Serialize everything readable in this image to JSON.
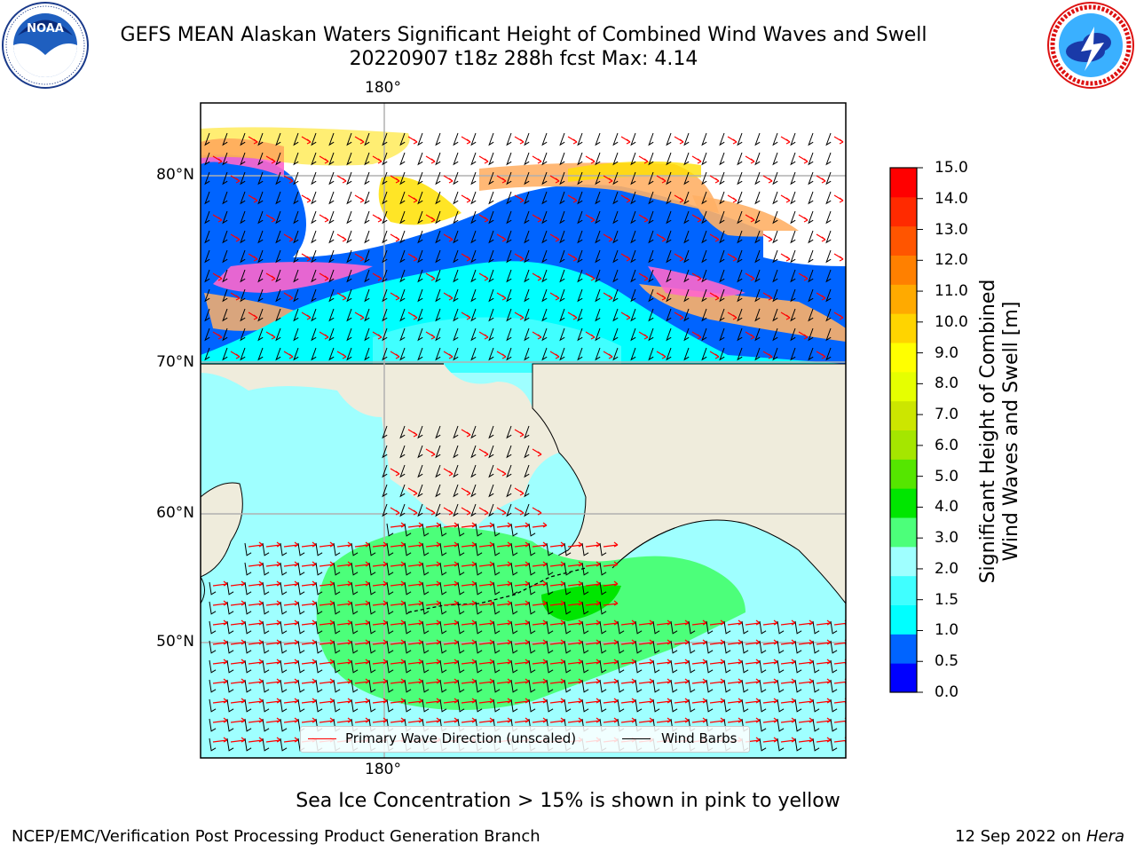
{
  "header": {
    "title_line1": "GEFS MEAN Alaskan Waters Significant Height of Combined Wind Waves and Swell",
    "title_line2": "20220907 t18z 288h fcst   Max: 4.14"
  },
  "logos": {
    "left": {
      "text": "NOAA",
      "ring_text": "NATIONAL OCEANIC AND ATMOSPHERIC ADMINISTRATION · U.S. DEPARTMENT OF COMMERCE"
    },
    "right": {
      "ring_text": "NATIONAL WEATHER SERVICE"
    }
  },
  "map": {
    "lat_labels": [
      "80°N",
      "70°N",
      "60°N",
      "50°N"
    ],
    "lon_label_top": "180°",
    "lon_label_bottom": "180°",
    "colors": {
      "land": "#efecdc",
      "ice_pink": "#ff66cc",
      "ice_orange": "#ffb066",
      "ice_yellow": "#ffe000",
      "grid": "#b0b0b0"
    }
  },
  "legend": {
    "wave_dir_label": "Primary Wave Direction (unscaled)",
    "wind_barbs_label": "Wind Barbs",
    "wave_dir_color": "#ff0000",
    "wind_barbs_color": "#000000"
  },
  "colorbar": {
    "label_line1": "Significant Height of Combined",
    "label_line2": "Wind Waves and Swell [m]",
    "ticks": [
      "15.0",
      "14.0",
      "13.0",
      "12.0",
      "11.0",
      "10.0",
      "9.0",
      "8.0",
      "7.0",
      "6.0",
      "5.0",
      "4.0",
      "3.0",
      "2.0",
      "1.5",
      "1.0",
      "0.5",
      "0.0"
    ],
    "colors_bottom_to_top": [
      "#0000ff",
      "#0064ff",
      "#00ffff",
      "#40ffff",
      "#9fffff",
      "#4cff7a",
      "#00e600",
      "#55e600",
      "#a5e600",
      "#cce600",
      "#e6ff00",
      "#ffff00",
      "#ffd400",
      "#ffaa00",
      "#ff8000",
      "#ff5500",
      "#ff2a00",
      "#ff0000"
    ]
  },
  "caption": "Sea Ice Concentration > 15% is shown in pink to yellow",
  "footer": {
    "left": "NCEP/EMC/Verification Post Processing Product Generation Branch",
    "right_date": "12 Sep 2022 on ",
    "right_machine": "Hera"
  }
}
